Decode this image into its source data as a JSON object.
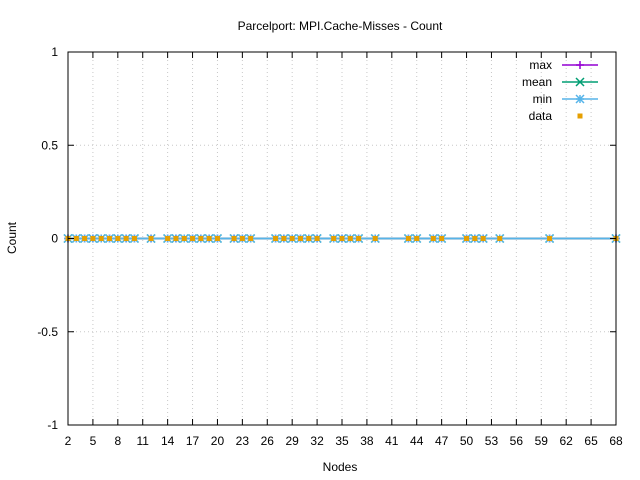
{
  "chart_data": {
    "type": "scatter",
    "title": "Parcelport: MPI.Cache-Misses - Count",
    "xlabel": "Nodes",
    "ylabel": "Count",
    "xlim": [
      2,
      68
    ],
    "ylim": [
      -1,
      1
    ],
    "x_ticks": [
      2,
      5,
      8,
      11,
      14,
      17,
      20,
      23,
      26,
      29,
      32,
      35,
      38,
      41,
      44,
      47,
      50,
      53,
      56,
      59,
      62,
      65,
      68
    ],
    "x_tick_labels": [
      "2",
      "5",
      "8",
      "11",
      "14",
      "17",
      "20",
      "23",
      "26",
      "29",
      "32",
      "35",
      "38",
      "41",
      "44",
      "47",
      "50",
      "53",
      "56",
      "59",
      "62",
      "65",
      "68"
    ],
    "y_ticks": [
      -1,
      -0.5,
      0,
      0.5,
      1
    ],
    "y_tick_labels": [
      "-1",
      "-0.5",
      "0",
      "0.5",
      "1"
    ],
    "grid": true,
    "legend_position": "top-right",
    "x": [
      2,
      3,
      4,
      5,
      6,
      7,
      8,
      9,
      10,
      12,
      14,
      15,
      16,
      17,
      18,
      19,
      20,
      22,
      23,
      24,
      27,
      28,
      29,
      30,
      31,
      32,
      34,
      35,
      36,
      37,
      39,
      43,
      44,
      46,
      47,
      50,
      51,
      52,
      54,
      60,
      68
    ],
    "series": [
      {
        "name": "max",
        "color": "#9400d3",
        "marker": "plus",
        "line": true,
        "values": [
          0,
          0,
          0,
          0,
          0,
          0,
          0,
          0,
          0,
          0,
          0,
          0,
          0,
          0,
          0,
          0,
          0,
          0,
          0,
          0,
          0,
          0,
          0,
          0,
          0,
          0,
          0,
          0,
          0,
          0,
          0,
          0,
          0,
          0,
          0,
          0,
          0,
          0,
          0,
          0,
          0
        ]
      },
      {
        "name": "mean",
        "color": "#009e73",
        "marker": "cross",
        "line": true,
        "values": [
          0,
          0,
          0,
          0,
          0,
          0,
          0,
          0,
          0,
          0,
          0,
          0,
          0,
          0,
          0,
          0,
          0,
          0,
          0,
          0,
          0,
          0,
          0,
          0,
          0,
          0,
          0,
          0,
          0,
          0,
          0,
          0,
          0,
          0,
          0,
          0,
          0,
          0,
          0,
          0,
          0
        ]
      },
      {
        "name": "min",
        "color": "#56b4e9",
        "marker": "star",
        "line": true,
        "values": [
          0,
          0,
          0,
          0,
          0,
          0,
          0,
          0,
          0,
          0,
          0,
          0,
          0,
          0,
          0,
          0,
          0,
          0,
          0,
          0,
          0,
          0,
          0,
          0,
          0,
          0,
          0,
          0,
          0,
          0,
          0,
          0,
          0,
          0,
          0,
          0,
          0,
          0,
          0,
          0,
          0
        ]
      },
      {
        "name": "data",
        "color": "#e69f00",
        "marker": "dot",
        "line": false,
        "values": [
          0,
          0,
          0,
          0,
          0,
          0,
          0,
          0,
          0,
          0,
          0,
          0,
          0,
          0,
          0,
          0,
          0,
          0,
          0,
          0,
          0,
          0,
          0,
          0,
          0,
          0,
          0,
          0,
          0,
          0,
          0,
          0,
          0,
          0,
          0,
          0,
          0,
          0,
          0,
          0,
          0
        ]
      }
    ]
  }
}
